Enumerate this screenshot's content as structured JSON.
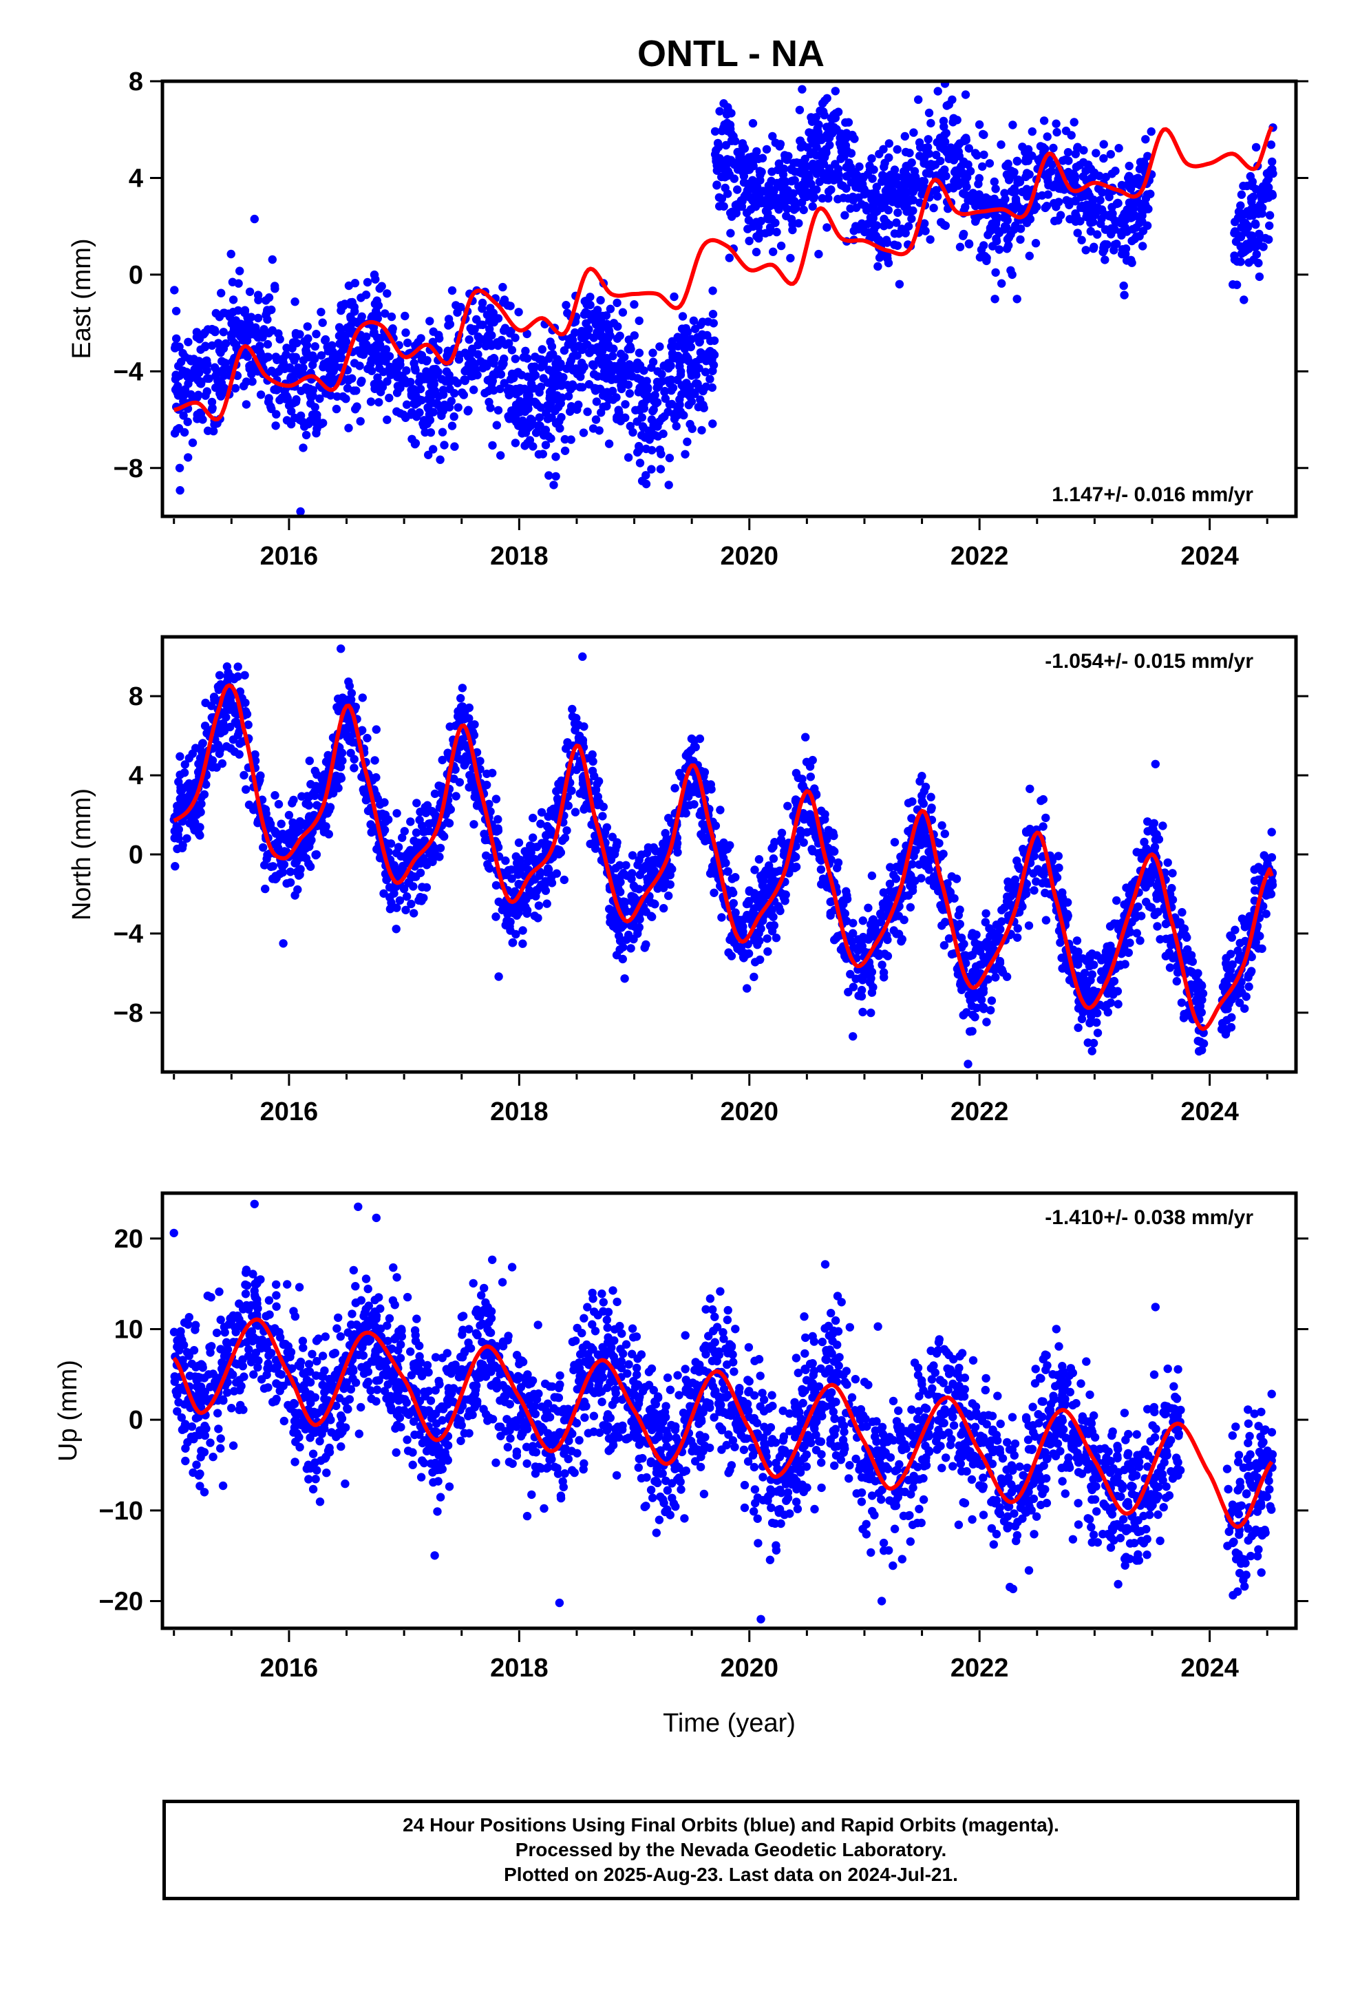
{
  "title": "ONTL - NA",
  "colors": {
    "observed": "#0000ff",
    "model": "#ff0000",
    "frame": "#000000",
    "background": "#ffffff"
  },
  "chart_data": [
    {
      "type": "scatter",
      "component": "east",
      "ylabel": "East (mm)",
      "rate_label": "1.147+/- 0.016 mm/yr",
      "xlim": [
        2014.9,
        2024.75
      ],
      "ylim": [
        -10.0,
        8.0
      ],
      "xticks": [
        2016,
        2018,
        2020,
        2022,
        2024
      ],
      "yticks": [
        -8,
        -4,
        0,
        4,
        8
      ],
      "ytick_labels": [
        "−8",
        "−4",
        "0",
        "4",
        "8"
      ],
      "xtick_labels": [
        "2016",
        "2018",
        "2020",
        "2022",
        "2024"
      ],
      "model_curve": {
        "x": [
          2015.0,
          2015.2,
          2015.4,
          2015.6,
          2015.8,
          2016.0,
          2016.2,
          2016.4,
          2016.6,
          2016.8,
          2017.0,
          2017.2,
          2017.4,
          2017.6,
          2017.8,
          2018.0,
          2018.2,
          2018.4,
          2018.6,
          2018.8,
          2019.0,
          2019.2,
          2019.4,
          2019.6,
          2019.8,
          2020.0,
          2020.2,
          2020.4,
          2020.6,
          2020.8,
          2021.0,
          2021.2,
          2021.4,
          2021.6,
          2021.8,
          2022.0,
          2022.2,
          2022.4,
          2022.6,
          2022.8,
          2023.0,
          2023.2,
          2023.4,
          2023.6,
          2023.8,
          2024.0,
          2024.2,
          2024.4,
          2024.55
        ],
        "y": [
          -5.6,
          -5.3,
          -5.9,
          -3.0,
          -4.2,
          -4.6,
          -4.2,
          -4.7,
          -2.3,
          -2.1,
          -3.4,
          -2.9,
          -3.6,
          -0.8,
          -1.2,
          -2.3,
          -1.8,
          -2.4,
          0.2,
          -0.8,
          -0.8,
          -0.8,
          -1.3,
          1.2,
          1.2,
          0.2,
          0.4,
          -0.3,
          2.7,
          1.5,
          1.4,
          1.0,
          1.1,
          3.9,
          2.6,
          2.6,
          2.7,
          2.5,
          5.0,
          3.5,
          3.8,
          3.5,
          3.4,
          6.0,
          4.6,
          4.6,
          5.0,
          4.4,
          6.2
        ]
      },
      "observed_points": {
        "segments": [
          {
            "x_range": [
              2015.0,
              2019.7
            ],
            "mean_start": -3.6,
            "mean_end": -4.4,
            "scatter": 1.3
          },
          {
            "x_range": [
              2019.7,
              2023.5
            ],
            "mean_start": 4.3,
            "mean_end": 3.0,
            "scatter": 1.2
          },
          {
            "x_range": [
              2024.2,
              2024.55
            ],
            "mean_start": 1.8,
            "mean_end": 3.2,
            "scatter": 1.0
          }
        ],
        "extremes": [
          {
            "x": 2015.05,
            "y": -8.0
          },
          {
            "x": 2016.1,
            "y": -9.8
          },
          {
            "x": 2018.3,
            "y": -8.7
          },
          {
            "x": 2019.1,
            "y": -8.3
          },
          {
            "x": 2019.3,
            "y": -8.7
          },
          {
            "x": 2021.7,
            "y": 7.9
          },
          {
            "x": 2021.85,
            "y": 8.2
          },
          {
            "x": 2015.7,
            "y": 2.3
          }
        ]
      }
    },
    {
      "type": "scatter",
      "component": "north",
      "ylabel": "North (mm)",
      "rate_label": "-1.054+/- 0.015 mm/yr",
      "xlim": [
        2014.9,
        2024.75
      ],
      "ylim": [
        -11.0,
        11.0
      ],
      "xticks": [
        2016,
        2018,
        2020,
        2022,
        2024
      ],
      "yticks": [
        -8,
        -4,
        0,
        4,
        8
      ],
      "ytick_labels": [
        "−8",
        "−4",
        "0",
        "4",
        "8"
      ],
      "xtick_labels": [
        "2016",
        "2018",
        "2020",
        "2022",
        "2024"
      ],
      "model_curve": {
        "x": [
          2015.0,
          2015.2,
          2015.4,
          2015.5,
          2015.6,
          2015.8,
          2015.95,
          2016.1,
          2016.3,
          2016.5,
          2016.65,
          2016.9,
          2017.1,
          2017.3,
          2017.5,
          2017.65,
          2017.9,
          2018.1,
          2018.3,
          2018.5,
          2018.65,
          2018.9,
          2019.1,
          2019.3,
          2019.5,
          2019.65,
          2019.9,
          2020.1,
          2020.3,
          2020.5,
          2020.65,
          2020.9,
          2021.1,
          2021.3,
          2021.5,
          2021.65,
          2021.9,
          2022.1,
          2022.3,
          2022.5,
          2022.65,
          2022.9,
          2023.1,
          2023.3,
          2023.5,
          2023.65,
          2023.9,
          2024.1,
          2024.3,
          2024.5,
          2024.55
        ],
        "y": [
          1.7,
          3.0,
          7.5,
          8.5,
          6.5,
          1.0,
          -0.2,
          0.8,
          2.5,
          7.5,
          4.5,
          -1.2,
          -0.2,
          1.5,
          6.5,
          3.5,
          -2.2,
          -1.0,
          0.5,
          5.5,
          2.0,
          -3.2,
          -2.0,
          0.0,
          4.5,
          1.5,
          -4.2,
          -3.0,
          -1.0,
          3.2,
          0.0,
          -5.4,
          -4.5,
          -2.0,
          2.2,
          -1.0,
          -6.5,
          -5.5,
          -3.0,
          1.1,
          -2.0,
          -7.5,
          -6.5,
          -3.0,
          0.0,
          -3.0,
          -8.6,
          -7.5,
          -5.5,
          -1.0,
          -1.2
        ]
      },
      "observed_points": {
        "annual_peaks": [
          2015.5,
          2016.5,
          2017.5,
          2018.5,
          2019.5,
          2020.5,
          2021.5,
          2022.5,
          2023.5,
          2024.5
        ],
        "scatter": 1.2,
        "extremes": [
          {
            "x": 2016.45,
            "y": 10.4
          },
          {
            "x": 2018.55,
            "y": 10.0
          },
          {
            "x": 2021.9,
            "y": -10.6
          },
          {
            "x": 2015.95,
            "y": -4.5
          },
          {
            "x": 2020.9,
            "y": -9.2
          }
        ]
      }
    },
    {
      "type": "scatter",
      "component": "up",
      "ylabel": "Up (mm)",
      "xlabel": "Time (year)",
      "rate_label": "-1.410+/- 0.038 mm/yr",
      "xlim": [
        2014.9,
        2024.75
      ],
      "ylim": [
        -23.0,
        25.0
      ],
      "xticks": [
        2016,
        2018,
        2020,
        2022,
        2024
      ],
      "yticks": [
        -20,
        -10,
        0,
        10,
        20
      ],
      "ytick_labels": [
        "−20",
        "−10",
        "0",
        "10",
        "20"
      ],
      "xtick_labels": [
        "2016",
        "2018",
        "2020",
        "2022",
        "2024"
      ],
      "model_curve": {
        "x": [
          2015.0,
          2015.25,
          2015.7,
          2016.0,
          2016.25,
          2016.65,
          2017.0,
          2017.3,
          2017.7,
          2018.0,
          2018.3,
          2018.7,
          2019.0,
          2019.3,
          2019.7,
          2020.0,
          2020.25,
          2020.7,
          2021.0,
          2021.25,
          2021.7,
          2022.0,
          2022.3,
          2022.7,
          2023.0,
          2023.3,
          2023.7,
          2024.0,
          2024.25,
          2024.55
        ],
        "y": [
          6.8,
          0.8,
          11.0,
          5.0,
          -0.5,
          9.5,
          4.5,
          -2.2,
          8.0,
          2.5,
          -3.4,
          6.5,
          1.0,
          -4.8,
          5.3,
          -1.0,
          -6.2,
          3.8,
          -2.5,
          -7.5,
          2.4,
          -3.5,
          -9.0,
          1.0,
          -4.5,
          -10.3,
          -0.5,
          -6.0,
          -11.8,
          -4.5
        ]
      },
      "observed_points": {
        "annual_peaks": [
          2015.7,
          2016.7,
          2017.7,
          2018.7,
          2019.7,
          2020.7,
          2021.7,
          2022.7,
          2023.7
        ],
        "scatter": 4.0,
        "extremes": [
          {
            "x": 2015.0,
            "y": 20.6
          },
          {
            "x": 2015.7,
            "y": 23.8
          },
          {
            "x": 2016.6,
            "y": 23.5
          },
          {
            "x": 2018.35,
            "y": -20.2
          },
          {
            "x": 2020.1,
            "y": -22.0
          },
          {
            "x": 2021.15,
            "y": -20.0
          }
        ]
      }
    }
  ],
  "footer": {
    "line1": "24 Hour Positions Using Final Orbits (blue) and Rapid Orbits (magenta).",
    "line2": "Processed by the Nevada Geodetic Laboratory.",
    "line3": "Plotted on 2025-Aug-23. Last data on 2024-Jul-21."
  }
}
